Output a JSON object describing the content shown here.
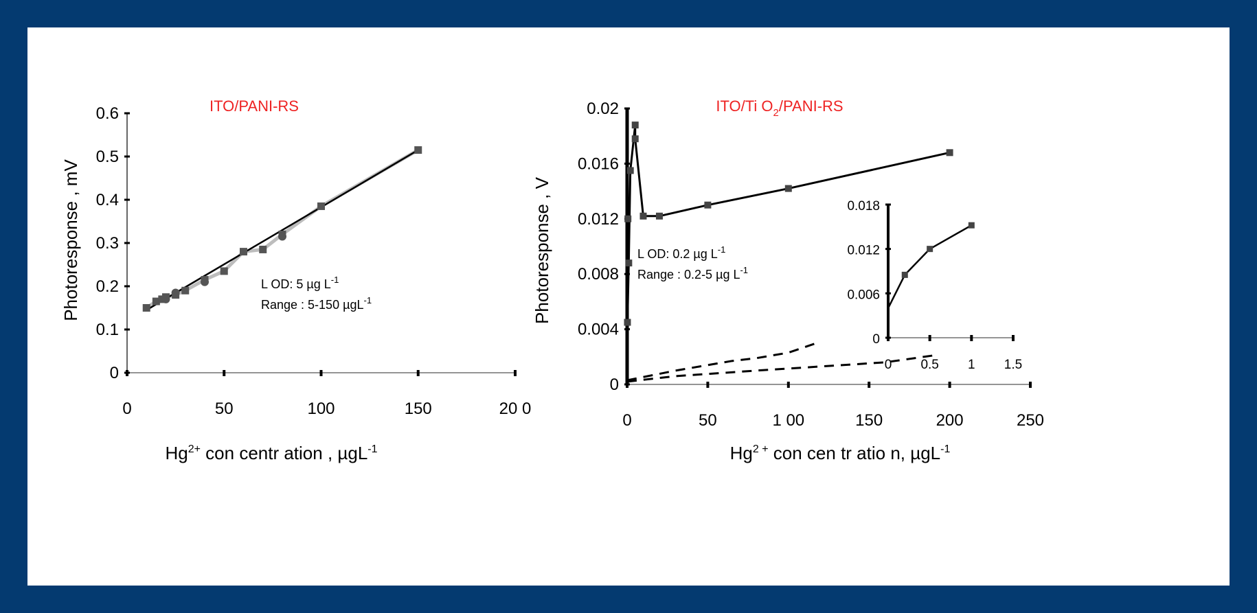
{
  "colors": {
    "frame": "#043a70",
    "title": "#ee2222",
    "marker": "#555555"
  },
  "chart_data": [
    {
      "type": "scatter",
      "title": "ITO/PANI-RS",
      "ylabel": "Photoresponse , mV",
      "xlabel_prefix": "Hg",
      "xlabel_sup": "2+",
      "xlabel_suffix": " con centr ation , µgL",
      "xlabel_unit_sup": "-1",
      "xlim": [
        0,
        200
      ],
      "ylim": [
        0,
        0.6
      ],
      "xticks": [
        0,
        50,
        100,
        150,
        200
      ],
      "xtick_labels": [
        "0",
        "50",
        "100",
        "150",
        "20 0"
      ],
      "yticks": [
        0,
        0.1,
        0.2,
        0.3,
        0.4,
        0.5,
        0.6
      ],
      "ytick_labels": [
        "0",
        "0.1",
        "0.2",
        "0.3",
        "0.4",
        "0.5",
        "0.6"
      ],
      "annotations": [
        {
          "text": "L OD: 5  µg L",
          "sup": "-1"
        },
        {
          "text": "Range : 5-150 µgL",
          "sup": "-1"
        }
      ],
      "series": [
        {
          "style": "markers",
          "x": [
            10,
            15,
            18,
            20,
            25,
            30,
            40,
            50,
            60,
            70,
            80,
            100,
            150
          ],
          "y": [
            0.15,
            0.165,
            0.17,
            0.175,
            0.18,
            0.19,
            0.215,
            0.235,
            0.28,
            0.285,
            0.32,
            0.385,
            0.515
          ]
        },
        {
          "style": "round-markers",
          "x": [
            20,
            25,
            40,
            80
          ],
          "y": [
            0.17,
            0.185,
            0.21,
            0.315
          ]
        },
        {
          "style": "fit-line",
          "x": [
            10,
            150
          ],
          "y": [
            0.145,
            0.515
          ]
        }
      ]
    },
    {
      "type": "line",
      "title_main": "ITO/Ti O",
      "title_sub": "2",
      "title_rest": "/PANI-RS",
      "ylabel": "Photoresponse , V",
      "xlabel_prefix": "Hg",
      "xlabel_sup": "2 +",
      "xlabel_suffix": " con cen tr atio n, µgL",
      "xlabel_unit_sup": "-1",
      "xlim": [
        0,
        250
      ],
      "ylim": [
        0,
        0.02
      ],
      "xticks": [
        0,
        50,
        100,
        150,
        200,
        250
      ],
      "xtick_labels": [
        "0",
        "50",
        "1 00",
        "150",
        "200",
        "250"
      ],
      "yticks": [
        0,
        0.004,
        0.008,
        0.012,
        0.016,
        0.02
      ],
      "ytick_labels": [
        "0",
        "0.004",
        "0.008",
        "0.012",
        "0.016",
        "0.02"
      ],
      "annotations": [
        {
          "text": "L OD: 0.2  µg L",
          "sup": "-1"
        },
        {
          "text": "Range : 0.2-5  µg L",
          "sup": "-1"
        }
      ],
      "series": [
        {
          "style": "markers-line",
          "x": [
            0.2,
            1,
            2,
            5,
            5,
            10,
            20,
            50,
            100,
            200
          ],
          "y": [
            0.0045,
            0.0088,
            0.0155,
            0.0188,
            0.0178,
            0.0122,
            0.0122,
            0.013,
            0.0142,
            0.0168
          ]
        },
        {
          "style": "markers",
          "x": [
            0.5
          ],
          "y": [
            0.012
          ]
        },
        {
          "style": "dashed",
          "x": [
            0,
            30,
            65,
            80,
            100,
            120
          ],
          "y": [
            0.0003,
            0.001,
            0.0017,
            0.0019,
            0.0023,
            0.0031
          ]
        },
        {
          "style": "dashed",
          "x": [
            0,
            30,
            80,
            120,
            160,
            190
          ],
          "y": [
            0.0002,
            0.0006,
            0.001,
            0.0013,
            0.0016,
            0.0021
          ]
        }
      ],
      "inset": {
        "xlim": [
          0,
          1.5
        ],
        "ylim": [
          0,
          0.018
        ],
        "xticks": [
          0,
          0.5,
          1,
          1.5
        ],
        "xtick_labels": [
          "0",
          "0.5",
          "1",
          "1.5"
        ],
        "yticks": [
          0,
          0.006,
          0.012,
          0.018
        ],
        "ytick_labels": [
          "0",
          "0.006",
          "0.012",
          "0.018"
        ],
        "x": [
          0,
          0.2,
          0.5,
          1.0
        ],
        "y": [
          0.004,
          0.0085,
          0.012,
          0.0152
        ]
      }
    }
  ]
}
